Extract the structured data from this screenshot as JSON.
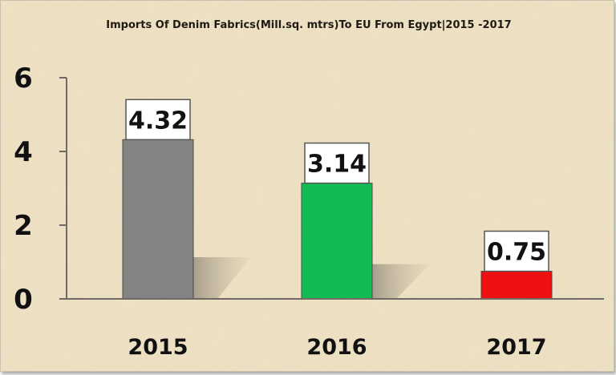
{
  "chart_data": {
    "type": "bar",
    "title": "Imports Of Denim Fabrics(Mill.sq. mtrs)To EU From Egypt|2015 -2017",
    "categories": [
      "2015",
      "2016",
      "2017"
    ],
    "values": [
      4.32,
      3.14,
      0.75
    ],
    "value_labels": [
      "4.32",
      "3.14",
      "0.75"
    ],
    "colors": [
      "#838383",
      "#13bb55",
      "#ee1111"
    ],
    "ylim": [
      0,
      6
    ],
    "yticks": [
      "0",
      "2",
      "4",
      "6"
    ],
    "xlabel": "",
    "ylabel": "",
    "grid": false,
    "legend": "none"
  }
}
